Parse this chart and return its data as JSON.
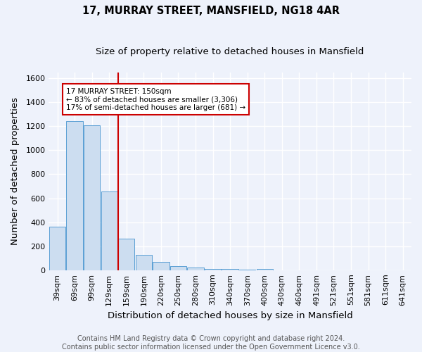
{
  "title": "17, MURRAY STREET, MANSFIELD, NG18 4AR",
  "subtitle": "Size of property relative to detached houses in Mansfield",
  "xlabel": "Distribution of detached houses by size in Mansfield",
  "ylabel": "Number of detached properties",
  "footer_line1": "Contains HM Land Registry data © Crown copyright and database right 2024.",
  "footer_line2": "Contains public sector information licensed under the Open Government Licence v3.0.",
  "bin_labels": [
    "39sqm",
    "69sqm",
    "99sqm",
    "129sqm",
    "159sqm",
    "190sqm",
    "220sqm",
    "250sqm",
    "280sqm",
    "310sqm",
    "340sqm",
    "370sqm",
    "400sqm",
    "430sqm",
    "460sqm",
    "491sqm",
    "521sqm",
    "551sqm",
    "581sqm",
    "611sqm",
    "641sqm"
  ],
  "bar_values": [
    365,
    1245,
    1205,
    655,
    265,
    125,
    70,
    35,
    20,
    12,
    10,
    5,
    8,
    0,
    0,
    0,
    0,
    0,
    0,
    0,
    0
  ],
  "bar_color": "#ccddf0",
  "bar_edge_color": "#5a9fd4",
  "red_line_bin_index": 4,
  "annotation_line1": "17 MURRAY STREET: 150sqm",
  "annotation_line2": "← 83% of detached houses are smaller (3,306)",
  "annotation_line3": "17% of semi-detached houses are larger (681) →",
  "annotation_box_color": "white",
  "annotation_box_edge_color": "#cc0000",
  "red_line_color": "#cc0000",
  "ylim": [
    0,
    1650
  ],
  "yticks": [
    0,
    200,
    400,
    600,
    800,
    1000,
    1200,
    1400,
    1600
  ],
  "background_color": "#eef2fb",
  "grid_color": "white",
  "title_fontsize": 10.5,
  "subtitle_fontsize": 9.5,
  "axis_label_fontsize": 9.5,
  "tick_fontsize": 8,
  "annotation_fontsize": 7.5,
  "footer_fontsize": 7
}
